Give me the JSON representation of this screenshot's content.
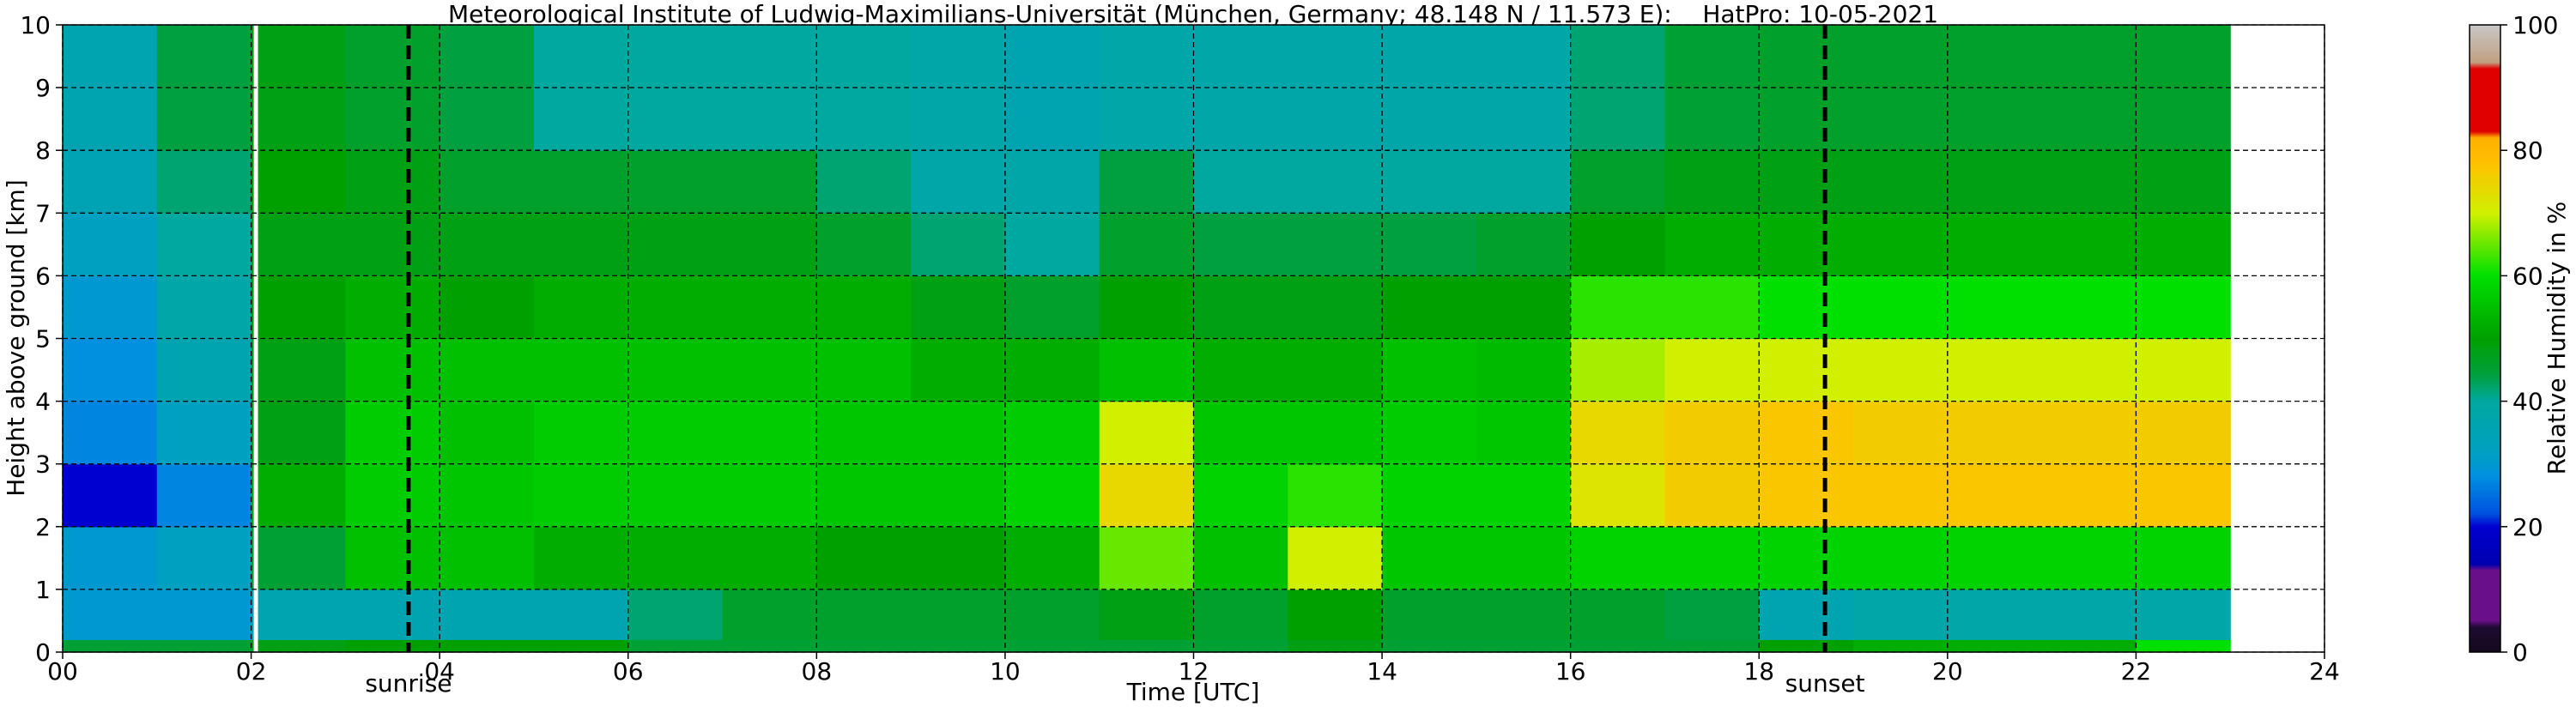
{
  "chart_data": {
    "type": "heatmap",
    "title": "Meteorological Institute of Ludwig-Maximilians-Universität (München, Germany; 48.148 N / 11.573 E):    HatPro: 10-05-2021",
    "x_label": "Time [UTC]",
    "y_label": "Height above ground [km]",
    "colorbar_label": "Relative Humidity in %",
    "x": [
      0,
      1,
      2,
      3,
      4,
      5,
      6,
      7,
      8,
      9,
      10,
      11,
      12,
      13,
      14,
      15,
      16,
      17,
      18,
      19,
      20,
      21,
      22,
      23
    ],
    "y": [
      0,
      0.2,
      1,
      2,
      3,
      4,
      5,
      6,
      7,
      8,
      10
    ],
    "values": [
      [
        45,
        45,
        48,
        50,
        50,
        50,
        45,
        45,
        45,
        45,
        45,
        45,
        45,
        48,
        45,
        45,
        45,
        45,
        50,
        52,
        52,
        52,
        60
      ],
      [
        30,
        30,
        36,
        36,
        36,
        36,
        42,
        46,
        46,
        46,
        46,
        48,
        46,
        50,
        46,
        46,
        46,
        44,
        36,
        38,
        38,
        38,
        38
      ],
      [
        30,
        32,
        45,
        55,
        55,
        52,
        52,
        52,
        50,
        50,
        52,
        65,
        55,
        70,
        56,
        56,
        58,
        58,
        58,
        58,
        58,
        58,
        58
      ],
      [
        20,
        27,
        52,
        57,
        56,
        57,
        57,
        57,
        56,
        56,
        58,
        74,
        58,
        62,
        58,
        58,
        72,
        76,
        77,
        77,
        77,
        77,
        77
      ],
      [
        27,
        32,
        48,
        57,
        55,
        57,
        57,
        57,
        56,
        56,
        57,
        70,
        56,
        56,
        57,
        56,
        74,
        76,
        77,
        76,
        76,
        76,
        76
      ],
      [
        28,
        36,
        48,
        55,
        55,
        55,
        55,
        55,
        55,
        52,
        52,
        55,
        52,
        52,
        55,
        54,
        68,
        70,
        70,
        70,
        70,
        70,
        70
      ],
      [
        30,
        38,
        50,
        52,
        50,
        52,
        52,
        52,
        52,
        48,
        46,
        50,
        48,
        48,
        50,
        50,
        62,
        62,
        60,
        60,
        60,
        60,
        60
      ],
      [
        32,
        40,
        48,
        48,
        48,
        48,
        48,
        48,
        46,
        42,
        40,
        46,
        44,
        44,
        44,
        46,
        50,
        52,
        52,
        52,
        52,
        52,
        52
      ],
      [
        35,
        42,
        50,
        48,
        46,
        46,
        46,
        46,
        42,
        38,
        38,
        44,
        40,
        40,
        40,
        40,
        46,
        48,
        48,
        48,
        48,
        48,
        48
      ],
      [
        36,
        44,
        48,
        46,
        44,
        40,
        40,
        40,
        40,
        38,
        36,
        38,
        38,
        38,
        38,
        38,
        42,
        45,
        46,
        46,
        46,
        46,
        46
      ]
    ],
    "xlim": [
      0,
      24
    ],
    "ylim": [
      0,
      10
    ],
    "xticks": [
      {
        "value": 0,
        "label": "00"
      },
      {
        "value": 2,
        "label": "02"
      },
      {
        "value": 4,
        "label": "04"
      },
      {
        "value": 6,
        "label": "06"
      },
      {
        "value": 8,
        "label": "08"
      },
      {
        "value": 10,
        "label": "10"
      },
      {
        "value": 12,
        "label": "12"
      },
      {
        "value": 14,
        "label": "14"
      },
      {
        "value": 16,
        "label": "16"
      },
      {
        "value": 18,
        "label": "18"
      },
      {
        "value": 20,
        "label": "20"
      },
      {
        "value": 22,
        "label": "22"
      },
      {
        "value": 24,
        "label": "24"
      }
    ],
    "yticks": [
      0,
      1,
      2,
      3,
      4,
      5,
      6,
      7,
      8,
      9,
      10
    ],
    "clim": [
      0,
      100
    ],
    "cticks": [
      0,
      20,
      40,
      60,
      80,
      100
    ],
    "colorscale": [
      [
        0,
        "#140a1e"
      ],
      [
        4,
        "#1e0a32"
      ],
      [
        5,
        "#6a0f8a"
      ],
      [
        13,
        "#6a0f8a"
      ],
      [
        14,
        "#0000b0"
      ],
      [
        20,
        "#0000d0"
      ],
      [
        22,
        "#0050e0"
      ],
      [
        28,
        "#0090e0"
      ],
      [
        32,
        "#00a0c0"
      ],
      [
        40,
        "#00a8a0"
      ],
      [
        44,
        "#00a040"
      ],
      [
        50,
        "#00a000"
      ],
      [
        60,
        "#00e000"
      ],
      [
        70,
        "#d0f000"
      ],
      [
        78,
        "#ffc000"
      ],
      [
        82,
        "#ffb000"
      ],
      [
        83,
        "#e00000"
      ],
      [
        93,
        "#e00000"
      ],
      [
        94,
        "#c0a080"
      ],
      [
        100,
        "#c8c8c8"
      ]
    ],
    "grid": true,
    "gaps": [
      2.05
    ],
    "events": [
      {
        "x": 3.67,
        "label": "sunrise"
      },
      {
        "x": 18.7,
        "label": "sunset"
      }
    ]
  }
}
